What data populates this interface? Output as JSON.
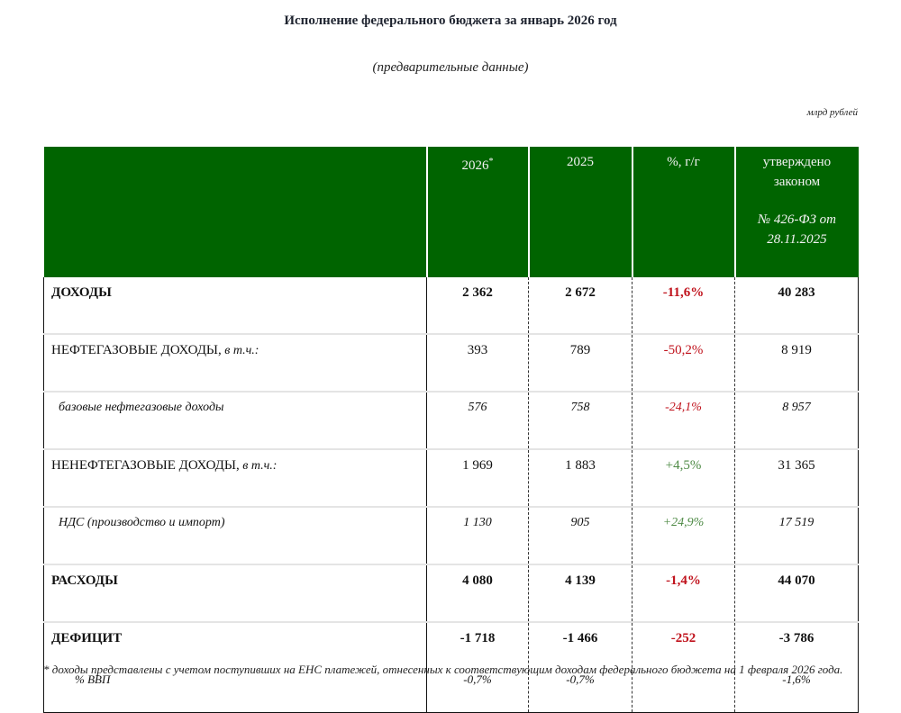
{
  "header": {
    "title": "Исполнение федерального бюджета за январь 2026 год",
    "subtitle": "(предварительные данные)",
    "units": "млрд рублей"
  },
  "table": {
    "columns": [
      {
        "label": "",
        "sup": ""
      },
      {
        "label": "2026",
        "sup": "*"
      },
      {
        "label": "2025",
        "sup": ""
      },
      {
        "label": "%, г/г",
        "sup": ""
      },
      {
        "label": "утверждено законом",
        "sup": "",
        "law": "№ 426-ФЗ от 28.11.2025"
      }
    ],
    "rows": [
      {
        "label": "ДОХОДЫ",
        "suffix": "",
        "y2026": "2 362",
        "y2025": "2 672",
        "yoy": "-11,6%",
        "yoy_sign": "neg",
        "approved": "40 283",
        "style": "bold"
      },
      {
        "label": "НЕФТЕГАЗОВЫЕ ДОХОДЫ,",
        "suffix": " в т.ч.:",
        "y2026": "393",
        "y2025": "789",
        "yoy": "-50,2%",
        "yoy_sign": "neg",
        "approved": "8 919",
        "style": "normal"
      },
      {
        "label": "базовые нефтегазовые доходы",
        "suffix": "",
        "y2026": "576",
        "y2025": "758",
        "yoy": "-24,1%",
        "yoy_sign": "neg",
        "approved": "8 957",
        "style": "italic"
      },
      {
        "label": "НЕНЕФТЕГАЗОВЫЕ ДОХОДЫ,",
        "suffix": " в т.ч.:",
        "y2026": "1 969",
        "y2025": "1 883",
        "yoy": "+4,5%",
        "yoy_sign": "pos",
        "approved": "31 365",
        "style": "normal"
      },
      {
        "label": "НДС (производство и импорт)",
        "suffix": "",
        "y2026": "1 130",
        "y2025": "905",
        "yoy": "+24,9%",
        "yoy_sign": "pos",
        "approved": "17 519",
        "style": "italic"
      },
      {
        "label": "РАСХОДЫ",
        "suffix": "",
        "y2026": "4 080",
        "y2025": "4 139",
        "yoy": "-1,4%",
        "yoy_sign": "neg",
        "approved": "44 070",
        "style": "bold"
      },
      {
        "label": "ДЕФИЦИТ",
        "suffix": "",
        "y2026": "-1 718",
        "y2025": "-1 466",
        "yoy": "-252",
        "yoy_sign": "neg",
        "approved": "-3 786",
        "style": "bold"
      },
      {
        "label": "% ВВП",
        "suffix": "",
        "y2026": "-0,7%",
        "y2025": "-0,7%",
        "yoy": "",
        "yoy_sign": "",
        "approved": "-1,6%",
        "style": "gdp"
      }
    ]
  },
  "footnote": "* доходы представлены с учетом поступивших на ЕНС платежей, отнесенных к соответствующим доходам федерального бюджета на 1 февраля 2026 года.",
  "colors": {
    "header_bg": "#006400",
    "negative": "#c0121c",
    "positive": "#4e8a45"
  }
}
